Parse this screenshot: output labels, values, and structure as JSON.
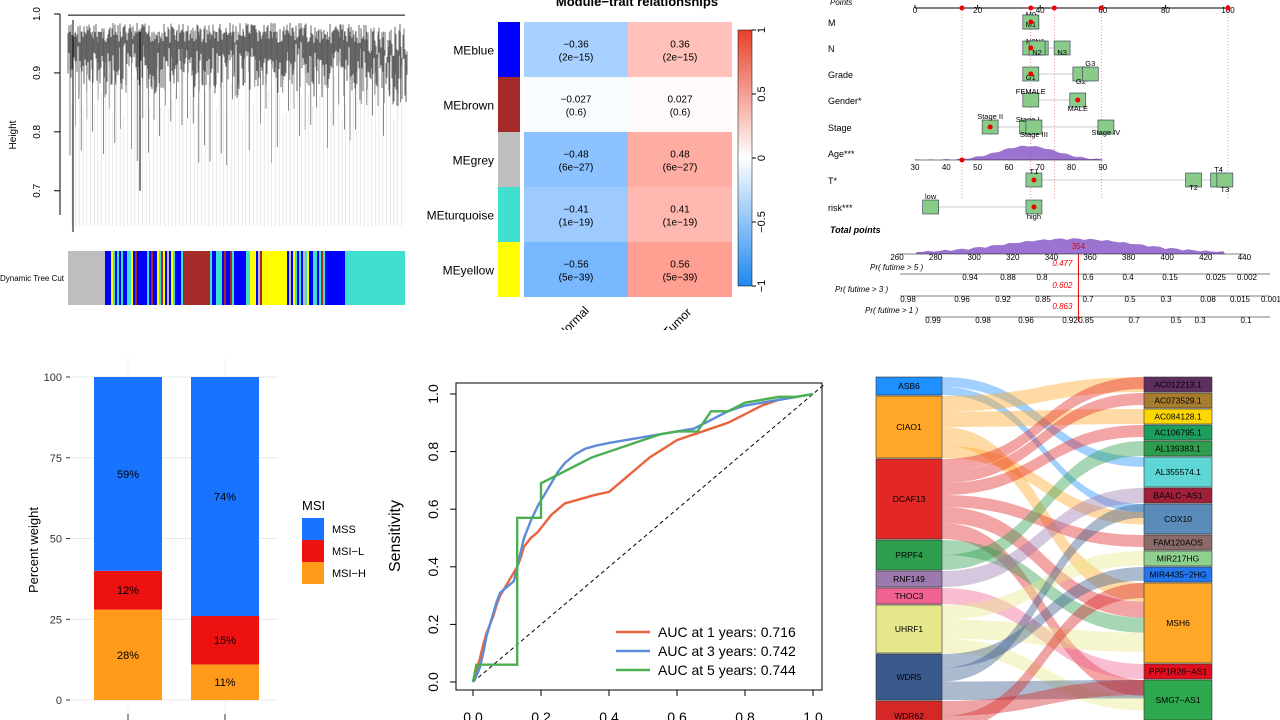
{
  "colors": {
    "blue": "#0000FF",
    "brown": "#A52A2A",
    "grey": "#BEBEBE",
    "turquoise": "#40E0D0",
    "yellow": "#FFFF00",
    "mss": "#1874FF",
    "msil": "#EE1111",
    "msih": "#FF9A1A",
    "roc1": "#E8643C",
    "roc3": "#5B8BD9",
    "roc5": "#4CAF50",
    "nomo_box": "#88CC88",
    "nomo_dist": "#8A5AC8",
    "sankey_pink": "#F48FB1"
  },
  "chart_data": [
    {
      "type": "dendrogram",
      "ylabel": "Height",
      "ylim": [
        0.63,
        1.0
      ],
      "yticks": [
        "0.7",
        "0.8",
        "0.9",
        "1.0"
      ],
      "color_bar_label": "Dynamic Tree Cut",
      "module_colors": [
        "grey",
        "brown",
        "blue",
        "yellow",
        "blue",
        "turquoise"
      ]
    },
    {
      "type": "heatmap",
      "title": "Module−trait relationships",
      "rows": [
        "MEblue",
        "MEbrown",
        "MEgrey",
        "MEturquoise",
        "MEyellow"
      ],
      "columns": [
        "Normal",
        "Tumor"
      ],
      "row_colors": [
        "#0000FF",
        "#A52A2A",
        "#BEBEBE",
        "#40E0D0",
        "#FFFF00"
      ],
      "values": [
        [
          -0.36,
          0.36
        ],
        [
          -0.027,
          0.027
        ],
        [
          -0.48,
          0.48
        ],
        [
          -0.41,
          0.41
        ],
        [
          -0.56,
          0.56
        ]
      ],
      "labels": [
        [
          [
            "−0.36",
            "(2e−15)"
          ],
          [
            "0.36",
            "(2e−15)"
          ]
        ],
        [
          [
            "−0.027",
            "(0.6)"
          ],
          [
            "0.027",
            "(0.6)"
          ]
        ],
        [
          [
            "−0.48",
            "(6e−27)"
          ],
          [
            "0.48",
            "(6e−27)"
          ]
        ],
        [
          [
            "−0.41",
            "(1e−19)"
          ],
          [
            "0.41",
            "(1e−19)"
          ]
        ],
        [
          [
            "−0.56",
            "(5e−39)"
          ],
          [
            "0.56",
            "(5e−39)"
          ]
        ]
      ],
      "legend_ticks": [
        "1",
        "0.5",
        "0",
        "−0.5",
        "−1"
      ]
    },
    {
      "type": "nomogram",
      "points_label": "Points",
      "points_ticks": [
        "0",
        "20",
        "40",
        "60",
        "80",
        "100"
      ],
      "rows": [
        {
          "name": "M",
          "labels": [
            "M0",
            "M1"
          ]
        },
        {
          "name": "N",
          "labels": [
            "N0",
            "N1",
            "N2",
            "N3"
          ]
        },
        {
          "name": "Grade",
          "labels": [
            "G1",
            "G2",
            "G3"
          ]
        },
        {
          "name": "Gender*",
          "labels": [
            "FEMALE",
            "MALE"
          ]
        },
        {
          "name": "Stage",
          "labels": [
            "Stage II",
            "Stage I",
            "Stage III",
            "Stage IV"
          ]
        },
        {
          "name": "Age***",
          "ticks": [
            "30",
            "40",
            "50",
            "60",
            "70",
            "80",
            "90"
          ]
        },
        {
          "name": "T*",
          "labels": [
            "T1",
            "T2",
            "T4",
            "T3"
          ]
        },
        {
          "name": "risk***",
          "labels": [
            "low",
            "high"
          ]
        }
      ],
      "total_label": "Total points",
      "total_ticks": [
        "260",
        "280",
        "300",
        "320",
        "340",
        "360",
        "380",
        "400",
        "420",
        "440"
      ],
      "total_value": "354",
      "prob_rows": [
        {
          "label": "Pr( futime > 5 )",
          "value": "0.477",
          "ticks": [
            "0.94",
            "0.88",
            "0.8",
            "0.6",
            "0.4",
            "0.15",
            "0.025",
            "0.002"
          ]
        },
        {
          "label": "Pr( futime > 3 )",
          "value": "0.602",
          "ticks": [
            "0.98",
            "0.96",
            "0.92",
            "0.85",
            "0.7",
            "0.5",
            "0.3",
            "0.08",
            "0.015",
            "0.001"
          ]
        },
        {
          "label": "Pr( futime > 1 )",
          "value": "0.863",
          "ticks": [
            "0.99",
            "0.98",
            "0.96",
            "0.92",
            "0.85",
            "0.7",
            "0.5",
            "0.3",
            "0.1"
          ]
        }
      ]
    },
    {
      "type": "bar",
      "stacked": true,
      "ylabel": "Percent weight",
      "ylim": [
        0,
        100
      ],
      "yticks": [
        "0",
        "25",
        "50",
        "75",
        "100"
      ],
      "legend_title": "MSI",
      "series": [
        {
          "name": "MSS",
          "values": [
            59,
            74
          ],
          "labels": [
            "59%",
            "74%"
          ]
        },
        {
          "name": "MSI−L",
          "values": [
            12,
            15
          ],
          "labels": [
            "12%",
            "15%"
          ]
        },
        {
          "name": "MSI−H",
          "values": [
            28,
            11
          ],
          "labels": [
            "28%",
            "11%"
          ]
        }
      ]
    },
    {
      "type": "line",
      "ylabel": "Sensitivity",
      "xlim": [
        0,
        1
      ],
      "ylim": [
        0,
        1
      ],
      "xticks": [
        "0.0",
        "0.2",
        "0.4",
        "0.6",
        "0.8",
        "1.0"
      ],
      "yticks": [
        "0.0",
        "0.2",
        "0.4",
        "0.6",
        "0.8",
        "1.0"
      ],
      "series": [
        {
          "name": "AUC at 1 years: 0.716",
          "x": [
            0,
            0.01,
            0.02,
            0.03,
            0.04,
            0.05,
            0.06,
            0.07,
            0.08,
            0.09,
            0.1,
            0.11,
            0.12,
            0.13,
            0.14,
            0.15,
            0.17,
            0.19,
            0.21,
            0.23,
            0.25,
            0.27,
            0.3,
            0.33,
            0.36,
            0.4,
            0.44,
            0.48,
            0.52,
            0.56,
            0.6,
            0.65,
            0.7,
            0.75,
            0.8,
            0.85,
            0.9,
            0.95,
            1.0
          ],
          "y": [
            0,
            0.04,
            0.08,
            0.13,
            0.17,
            0.2,
            0.23,
            0.27,
            0.3,
            0.32,
            0.34,
            0.36,
            0.38,
            0.4,
            0.43,
            0.47,
            0.5,
            0.52,
            0.55,
            0.58,
            0.6,
            0.62,
            0.63,
            0.64,
            0.65,
            0.66,
            0.7,
            0.74,
            0.78,
            0.81,
            0.84,
            0.86,
            0.88,
            0.9,
            0.93,
            0.96,
            0.98,
            0.99,
            1.0
          ]
        },
        {
          "name": "AUC at 3 years: 0.742",
          "x": [
            0,
            0.01,
            0.02,
            0.03,
            0.04,
            0.05,
            0.06,
            0.07,
            0.08,
            0.1,
            0.12,
            0.13,
            0.14,
            0.15,
            0.17,
            0.19,
            0.21,
            0.23,
            0.25,
            0.27,
            0.3,
            0.33,
            0.36,
            0.4,
            0.45,
            0.5,
            0.55,
            0.6,
            0.65,
            0.7,
            0.75,
            0.8,
            0.85,
            0.9,
            0.95,
            1.0
          ],
          "y": [
            0,
            0.02,
            0.05,
            0.1,
            0.16,
            0.2,
            0.24,
            0.28,
            0.31,
            0.33,
            0.35,
            0.4,
            0.45,
            0.5,
            0.56,
            0.61,
            0.65,
            0.69,
            0.73,
            0.76,
            0.79,
            0.81,
            0.82,
            0.83,
            0.84,
            0.85,
            0.86,
            0.87,
            0.88,
            0.91,
            0.94,
            0.96,
            0.97,
            0.98,
            0.99,
            1.0
          ]
        },
        {
          "name": "AUC at 5 years: 0.744",
          "x": [
            0,
            0.01,
            0.02,
            0.03,
            0.13,
            0.13,
            0.2,
            0.2,
            0.25,
            0.3,
            0.35,
            0.4,
            0.45,
            0.5,
            0.55,
            0.6,
            0.66,
            0.7,
            0.75,
            0.8,
            0.85,
            0.9,
            0.95,
            1.0
          ],
          "y": [
            0,
            0.06,
            0.06,
            0.06,
            0.06,
            0.57,
            0.57,
            0.69,
            0.72,
            0.75,
            0.78,
            0.8,
            0.82,
            0.84,
            0.86,
            0.87,
            0.87,
            0.94,
            0.94,
            0.97,
            0.98,
            0.99,
            0.99,
            1.0
          ]
        }
      ]
    },
    {
      "type": "sankey",
      "left": [
        {
          "name": "ASB6",
          "color": "#1E90FF"
        },
        {
          "name": "CIAO1",
          "color": "#FFA726"
        },
        {
          "name": "DCAF13",
          "color": "#E32626"
        },
        {
          "name": "PRPF4",
          "color": "#2E9E4E"
        },
        {
          "name": "RNF149",
          "color": "#9A7AAE"
        },
        {
          "name": "THOC3",
          "color": "#F06292"
        },
        {
          "name": "UHRF1",
          "color": "#E6E68A"
        },
        {
          "name": "WDR5",
          "color": "#3A5A8C"
        },
        {
          "name": "WDR62",
          "color": "#D62727"
        }
      ],
      "right": [
        {
          "name": "AC012213.1",
          "color": "#5E2F5E"
        },
        {
          "name": "AC073529.1",
          "color": "#A67C2E"
        },
        {
          "name": "AC084128.1",
          "color": "#FFD700"
        },
        {
          "name": "AC106795.1",
          "color": "#1E9E5E"
        },
        {
          "name": "AL139383.1",
          "color": "#2E9E4E"
        },
        {
          "name": "AL355574.1",
          "color": "#5ED6D6"
        },
        {
          "name": "BAALC−AS1",
          "color": "#A0203A"
        },
        {
          "name": "COX10",
          "color": "#5B8BB8"
        },
        {
          "name": "FAM120AOS",
          "color": "#8A6A6A"
        },
        {
          "name": "MIR217HG",
          "color": "#8FD08F"
        },
        {
          "name": "MIR4435−2HG",
          "color": "#2277EE"
        },
        {
          "name": "MSH6",
          "color": "#FFA726"
        },
        {
          "name": "PPP1R26−AS1",
          "color": "#E01020"
        },
        {
          "name": "SMG7−AS1",
          "color": "#2EA84E"
        }
      ]
    }
  ]
}
